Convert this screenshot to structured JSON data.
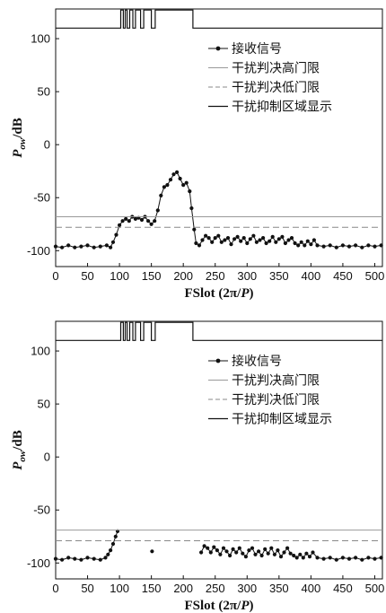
{
  "chart_data": [
    {
      "type": "line",
      "xlabel": "FSlot (2π/P)",
      "ylabel": "Pow/dB",
      "ylabel_main": "P",
      "ylabel_sub": "ow",
      "ylabel_unit": "/dB",
      "xlabel_main": "FSlot (2π/",
      "xlabel_var": "P",
      "xlabel_tail": ")",
      "xlim": [
        0,
        512
      ],
      "ylim": [
        -115,
        128
      ],
      "xticks": [
        0,
        50,
        100,
        150,
        200,
        250,
        300,
        350,
        400,
        450,
        500
      ],
      "yticks": [
        100,
        50,
        0,
        -50,
        -100
      ],
      "series": [
        {
          "name": "接收信号",
          "style": "solid-with-dots",
          "points": [
            [
              0,
              -96
            ],
            [
              10,
              -97
            ],
            [
              20,
              -95
            ],
            [
              30,
              -97
            ],
            [
              40,
              -96
            ],
            [
              50,
              -95
            ],
            [
              60,
              -97
            ],
            [
              70,
              -96
            ],
            [
              80,
              -95
            ],
            [
              86,
              -97
            ],
            [
              90,
              -92
            ],
            [
              95,
              -85
            ],
            [
              100,
              -76
            ],
            [
              105,
              -72
            ],
            [
              110,
              -70
            ],
            [
              115,
              -72
            ],
            [
              120,
              -68
            ],
            [
              125,
              -70
            ],
            [
              130,
              -69
            ],
            [
              135,
              -71
            ],
            [
              140,
              -68
            ],
            [
              145,
              -72
            ],
            [
              150,
              -75
            ],
            [
              155,
              -72
            ],
            [
              160,
              -62
            ],
            [
              165,
              -48
            ],
            [
              170,
              -40
            ],
            [
              175,
              -38
            ],
            [
              180,
              -33
            ],
            [
              185,
              -28
            ],
            [
              190,
              -26
            ],
            [
              195,
              -32
            ],
            [
              200,
              -38
            ],
            [
              205,
              -36
            ],
            [
              210,
              -44
            ],
            [
              213,
              -60
            ],
            [
              217,
              -80
            ],
            [
              220,
              -93
            ],
            [
              225,
              -95
            ],
            [
              230,
              -90
            ],
            [
              235,
              -86
            ],
            [
              240,
              -88
            ],
            [
              245,
              -92
            ],
            [
              250,
              -88
            ],
            [
              255,
              -86
            ],
            [
              260,
              -92
            ],
            [
              265,
              -90
            ],
            [
              270,
              -88
            ],
            [
              275,
              -94
            ],
            [
              280,
              -89
            ],
            [
              285,
              -87
            ],
            [
              290,
              -91
            ],
            [
              295,
              -88
            ],
            [
              300,
              -93
            ],
            [
              305,
              -89
            ],
            [
              310,
              -86
            ],
            [
              315,
              -92
            ],
            [
              320,
              -90
            ],
            [
              325,
              -88
            ],
            [
              330,
              -93
            ],
            [
              335,
              -91
            ],
            [
              340,
              -87
            ],
            [
              345,
              -92
            ],
            [
              350,
              -89
            ],
            [
              355,
              -87
            ],
            [
              360,
              -93
            ],
            [
              365,
              -90
            ],
            [
              370,
              -88
            ],
            [
              375,
              -93
            ],
            [
              380,
              -95
            ],
            [
              385,
              -92
            ],
            [
              390,
              -95
            ],
            [
              395,
              -91
            ],
            [
              400,
              -94
            ],
            [
              405,
              -90
            ],
            [
              410,
              -95
            ],
            [
              420,
              -96
            ],
            [
              430,
              -95
            ],
            [
              440,
              -97
            ],
            [
              450,
              -95
            ],
            [
              460,
              -96
            ],
            [
              470,
              -95
            ],
            [
              480,
              -97
            ],
            [
              490,
              -95
            ],
            [
              500,
              -96
            ],
            [
              510,
              -95
            ]
          ]
        },
        {
          "name": "干扰判决高门限",
          "style": "solid-light",
          "y": -68
        },
        {
          "name": "干扰判决低门限",
          "style": "dashed",
          "y": -78
        },
        {
          "name": "干扰抑制区域显示",
          "style": "solid",
          "steps": [
            [
              0,
              110
            ],
            [
              102,
              110
            ],
            [
              102,
              127
            ],
            [
              106,
              127
            ],
            [
              106,
              110
            ],
            [
              109,
              110
            ],
            [
              109,
              127
            ],
            [
              112,
              127
            ],
            [
              112,
              110
            ],
            [
              116,
              110
            ],
            [
              116,
              127
            ],
            [
              121,
              127
            ],
            [
              121,
              110
            ],
            [
              125,
              110
            ],
            [
              125,
              127
            ],
            [
              133,
              127
            ],
            [
              133,
              110
            ],
            [
              138,
              110
            ],
            [
              138,
              127
            ],
            [
              150,
              127
            ],
            [
              150,
              110
            ],
            [
              156,
              110
            ],
            [
              156,
              127
            ],
            [
              215,
              127
            ],
            [
              215,
              110
            ],
            [
              512,
              110
            ]
          ]
        }
      ]
    },
    {
      "type": "line",
      "xlabel": "FSlot (2π/P)",
      "ylabel": "Pow/dB",
      "ylabel_main": "P",
      "ylabel_sub": "ow",
      "ylabel_unit": "/dB",
      "xlabel_main": "FSlot (2π/",
      "xlabel_var": "P",
      "xlabel_tail": ")",
      "xlim": [
        0,
        512
      ],
      "ylim": [
        -115,
        128
      ],
      "xticks": [
        0,
        50,
        100,
        150,
        200,
        250,
        300,
        350,
        400,
        450,
        500
      ],
      "yticks": [
        100,
        50,
        0,
        -50,
        -100
      ],
      "series": [
        {
          "name": "接收信号",
          "style": "solid-with-dots",
          "segments": [
            [
              [
                0,
                -96
              ],
              [
                10,
                -97
              ],
              [
                20,
                -95
              ],
              [
                30,
                -96
              ],
              [
                40,
                -97
              ],
              [
                50,
                -95
              ],
              [
                60,
                -96
              ],
              [
                70,
                -97
              ],
              [
                78,
                -95
              ],
              [
                82,
                -92
              ],
              [
                86,
                -88
              ],
              [
                90,
                -82
              ],
              [
                94,
                -75
              ],
              [
                97,
                -70
              ]
            ],
            [
              [
                151,
                -89
              ]
            ],
            [
              [
                228,
                -90
              ],
              [
                233,
                -84
              ],
              [
                238,
                -86
              ],
              [
                243,
                -90
              ],
              [
                248,
                -85
              ],
              [
                253,
                -88
              ],
              [
                258,
                -92
              ],
              [
                263,
                -86
              ],
              [
                268,
                -89
              ],
              [
                273,
                -93
              ],
              [
                278,
                -87
              ],
              [
                283,
                -90
              ],
              [
                288,
                -86
              ],
              [
                293,
                -91
              ],
              [
                298,
                -94
              ],
              [
                303,
                -88
              ],
              [
                308,
                -86
              ],
              [
                313,
                -92
              ],
              [
                318,
                -89
              ],
              [
                323,
                -93
              ],
              [
                328,
                -87
              ],
              [
                333,
                -91
              ],
              [
                338,
                -86
              ],
              [
                343,
                -92
              ],
              [
                348,
                -88
              ],
              [
                353,
                -94
              ],
              [
                358,
                -90
              ],
              [
                363,
                -86
              ],
              [
                368,
                -91
              ],
              [
                373,
                -93
              ],
              [
                378,
                -95
              ],
              [
                383,
                -92
              ],
              [
                388,
                -95
              ],
              [
                393,
                -91
              ],
              [
                398,
                -94
              ],
              [
                403,
                -90
              ],
              [
                410,
                -95
              ],
              [
                420,
                -96
              ],
              [
                430,
                -95
              ],
              [
                440,
                -97
              ],
              [
                450,
                -95
              ],
              [
                460,
                -96
              ],
              [
                470,
                -95
              ],
              [
                480,
                -97
              ],
              [
                490,
                -95
              ],
              [
                500,
                -96
              ],
              [
                510,
                -95
              ]
            ]
          ]
        },
        {
          "name": "干扰判决高门限",
          "style": "solid-light",
          "y": -69
        },
        {
          "name": "干扰判决低门限",
          "style": "dashed",
          "y": -79
        },
        {
          "name": "干扰抑制区域显示",
          "style": "solid",
          "steps": [
            [
              0,
              110
            ],
            [
              102,
              110
            ],
            [
              102,
              127
            ],
            [
              106,
              127
            ],
            [
              106,
              110
            ],
            [
              109,
              110
            ],
            [
              109,
              127
            ],
            [
              112,
              127
            ],
            [
              112,
              110
            ],
            [
              116,
              110
            ],
            [
              116,
              127
            ],
            [
              121,
              127
            ],
            [
              121,
              110
            ],
            [
              125,
              110
            ],
            [
              125,
              127
            ],
            [
              133,
              127
            ],
            [
              133,
              110
            ],
            [
              138,
              110
            ],
            [
              138,
              127
            ],
            [
              150,
              127
            ],
            [
              150,
              110
            ],
            [
              156,
              110
            ],
            [
              156,
              127
            ],
            [
              215,
              127
            ],
            [
              215,
              110
            ],
            [
              512,
              110
            ]
          ]
        }
      ]
    }
  ]
}
